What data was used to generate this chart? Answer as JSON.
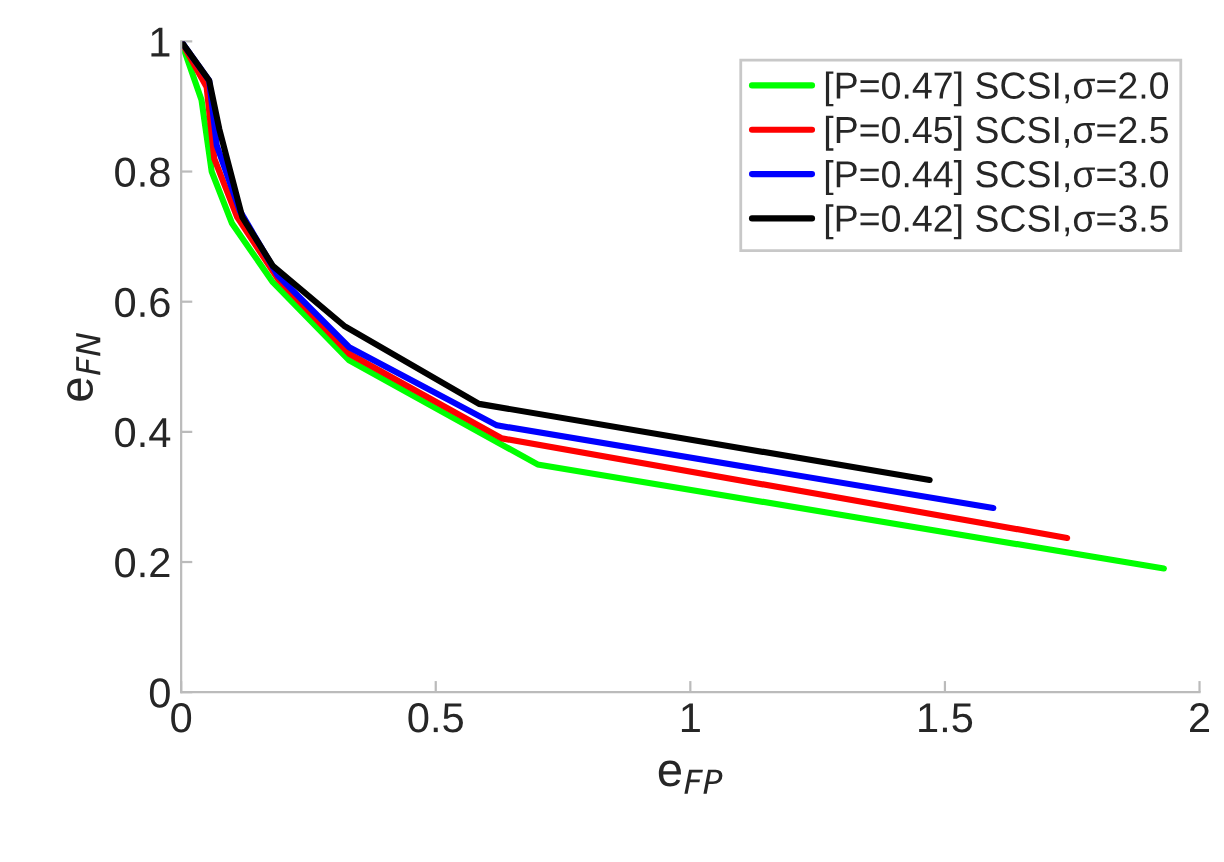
{
  "chart_data": {
    "type": "line",
    "xlabel": "e$_{FP}$",
    "ylabel": "e$_{FN}$",
    "xlim": [
      0,
      2
    ],
    "ylim": [
      0,
      1
    ],
    "xticks": [
      0,
      0.5,
      1,
      1.5,
      2
    ],
    "yticks": [
      0,
      0.2,
      0.4,
      0.6,
      0.8,
      1
    ],
    "legend": "top right",
    "line_style": "solid",
    "series": [
      {
        "name": "[P=0.47] SCSI,σ=2.0",
        "color": "#00ff00",
        "x": [
          0,
          0.04,
          0.06,
          0.1,
          0.18,
          0.33,
          0.7,
          1.93
        ],
        "values": [
          1,
          0.91,
          0.8,
          0.72,
          0.63,
          0.51,
          0.35,
          0.19
        ]
      },
      {
        "name": "[P=0.45] SCSI,σ=2.5",
        "color": "#ff0000",
        "x": [
          0,
          0.05,
          0.065,
          0.11,
          0.19,
          0.33,
          0.63,
          1.74
        ],
        "values": [
          1,
          0.93,
          0.82,
          0.73,
          0.635,
          0.52,
          0.39,
          0.237
        ]
      },
      {
        "name": "[P=0.44] SCSI,σ=3.0",
        "color": "#0000ff",
        "x": [
          0,
          0.055,
          0.07,
          0.115,
          0.19,
          0.33,
          0.62,
          1.595
        ],
        "values": [
          1,
          0.94,
          0.84,
          0.74,
          0.64,
          0.53,
          0.41,
          0.283
        ]
      },
      {
        "name": "[P=0.42] SCSI,σ=3.5",
        "color": "#000000",
        "x": [
          0,
          0.055,
          0.075,
          0.12,
          0.18,
          0.32,
          0.585,
          1.47
        ],
        "values": [
          1,
          0.94,
          0.865,
          0.73,
          0.655,
          0.563,
          0.443,
          0.326
        ]
      }
    ]
  }
}
